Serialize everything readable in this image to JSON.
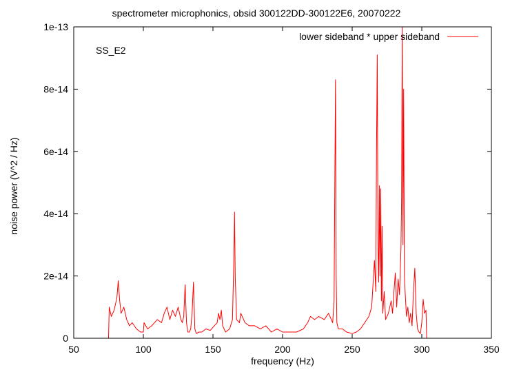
{
  "chart_data": {
    "type": "line",
    "title": "spectrometer microphonics, obsid 300122DD-300122E6, 20070222",
    "xlabel": "frequency (Hz)",
    "ylabel": "noise power (V^2 / Hz)",
    "xlim": [
      50,
      350
    ],
    "ylim": [
      0,
      1e-13
    ],
    "x_ticks": [
      50,
      100,
      150,
      200,
      250,
      300,
      350
    ],
    "x_tick_labels": [
      "50",
      "100",
      "150",
      "200",
      "250",
      "300",
      "350"
    ],
    "y_ticks": [
      0,
      2e-14,
      4e-14,
      6e-14,
      8e-14,
      1e-13
    ],
    "y_tick_labels": [
      "0",
      "2e-14",
      "4e-14",
      "6e-14",
      "8e-14",
      "1e-13"
    ],
    "annotation": "SS_E2",
    "grid": false,
    "legend_position": "top-right",
    "series": [
      {
        "name": "lower sideband * upper sideband",
        "color": "#ff0000",
        "x": [
          50,
          75,
          75.5,
          77,
          79,
          81,
          82,
          83,
          84,
          86,
          88,
          90,
          92,
          95,
          98,
          100,
          100.5,
          103,
          106,
          110,
          113,
          115,
          117,
          119,
          121,
          123,
          125,
          127,
          128,
          129,
          130,
          131,
          132,
          133,
          134,
          135,
          136,
          137,
          138,
          140,
          142,
          145,
          148,
          151,
          153,
          154,
          155,
          156,
          157,
          159,
          162,
          164,
          165,
          165.5,
          166,
          167,
          169,
          170,
          173,
          176,
          180,
          184,
          188,
          192,
          196,
          200,
          205,
          210,
          215,
          218,
          220,
          223,
          226,
          230,
          233,
          236,
          237,
          238,
          238.5,
          239,
          240,
          243,
          246,
          250,
          253,
          256,
          259,
          262,
          264,
          266,
          267,
          267.5,
          268,
          268.5,
          269,
          269.5,
          270,
          270.5,
          271,
          271.5,
          272,
          273,
          274,
          276,
          278,
          279,
          280,
          281,
          282,
          283,
          284,
          285,
          285.5,
          286,
          286.5,
          287,
          287.5,
          288,
          289,
          290,
          291,
          292,
          293,
          294,
          295,
          296,
          297,
          298,
          299,
          300,
          301,
          302,
          303,
          303.5,
          304,
          350
        ],
        "values": [
          0,
          0,
          1e-14,
          7e-15,
          9e-15,
          1.3e-14,
          1.85e-14,
          1.2e-14,
          8e-15,
          1e-14,
          6e-15,
          4e-15,
          5e-15,
          3e-15,
          2e-15,
          2e-15,
          5e-15,
          3e-15,
          4e-15,
          6e-15,
          5e-15,
          8e-15,
          1e-14,
          6e-15,
          9e-15,
          7e-15,
          1e-14,
          6e-15,
          5e-15,
          7e-15,
          1.72e-14,
          5e-15,
          2e-15,
          2e-15,
          3e-15,
          8e-15,
          1.8e-14,
          3e-15,
          1.5e-15,
          2e-15,
          2e-15,
          3e-15,
          2.5e-15,
          4e-15,
          5e-15,
          8e-15,
          6e-15,
          9e-15,
          4e-15,
          2e-15,
          3e-15,
          6e-15,
          2.5e-14,
          4.05e-14,
          2e-14,
          6e-15,
          5e-15,
          8e-15,
          5e-15,
          4e-15,
          4e-15,
          3e-15,
          4e-15,
          2e-15,
          3e-15,
          2e-15,
          2e-15,
          2e-15,
          3e-15,
          5e-15,
          7e-15,
          6e-15,
          7e-15,
          6e-15,
          8e-15,
          5e-15,
          1.2e-14,
          8.3e-14,
          2e-14,
          5e-15,
          3e-15,
          3e-15,
          2e-15,
          1.5e-15,
          2e-15,
          3e-15,
          5e-15,
          7e-15,
          1e-14,
          2.5e-14,
          1.5e-14,
          6e-14,
          9.1e-14,
          3e-14,
          1.8e-14,
          4.9e-14,
          2e-14,
          4.8e-14,
          1.2e-14,
          3.6e-14,
          8e-15,
          1.5e-14,
          6e-15,
          8e-15,
          1.2e-14,
          8e-15,
          1.5e-14,
          2.1e-14,
          1e-14,
          1.9e-14,
          1.4e-14,
          2.8e-14,
          4.5e-14,
          1e-13,
          3e-14,
          8e-14,
          2e-14,
          1.5e-14,
          7e-15,
          1e-14,
          5e-15,
          8e-15,
          4e-15,
          1.5e-14,
          2.25e-14,
          8e-15,
          3e-15,
          2e-15,
          1.5e-15,
          5e-15,
          1.25e-14,
          8e-15,
          9e-15,
          0,
          0,
          0
        ]
      }
    ]
  }
}
